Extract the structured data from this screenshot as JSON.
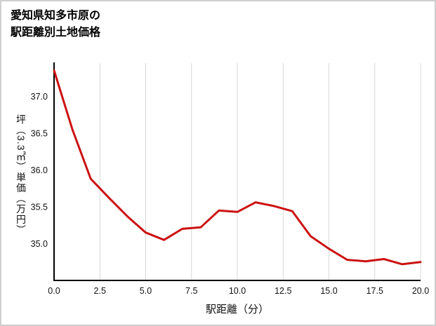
{
  "title": {
    "line1": "愛知県知多市原の",
    "line2": "駅距離別土地価格"
  },
  "chart_data": {
    "type": "line",
    "x": [
      0,
      1,
      2,
      3,
      4,
      5,
      6,
      7,
      8,
      9,
      10,
      11,
      12,
      13,
      14,
      15,
      16,
      17,
      18,
      19,
      20
    ],
    "values": [
      37.35,
      36.55,
      35.88,
      35.62,
      35.37,
      35.15,
      35.05,
      35.2,
      35.22,
      35.45,
      35.43,
      35.56,
      35.51,
      35.44,
      35.1,
      34.93,
      34.78,
      34.76,
      34.79,
      34.72,
      34.75
    ],
    "title": "愛知県知多市原の駅距離別土地価格",
    "xlabel": "駅距離（分）",
    "ylabel": "坪（3.3㎡）単価（万円）",
    "xlim": [
      0,
      20
    ],
    "ylim": [
      34.5,
      37.45
    ],
    "xticks": [
      0,
      2.5,
      5,
      7.5,
      10,
      12.5,
      15,
      17.5,
      20
    ],
    "xtick_labels": [
      "0.0",
      "2.5",
      "5.0",
      "7.5",
      "10.0",
      "12.5",
      "15.0",
      "17.5",
      "20.0"
    ],
    "yticks": [
      35.0,
      35.5,
      36.0,
      36.5,
      37.0
    ],
    "ytick_labels": [
      "35.0",
      "35.5",
      "36.0",
      "36.5",
      "37.0"
    ],
    "line_color": "#cc1111",
    "grid_color": "#d8d8d8",
    "axis_color": "#000000",
    "grid": "vertical",
    "legend": "none",
    "background": "#ffffff"
  }
}
